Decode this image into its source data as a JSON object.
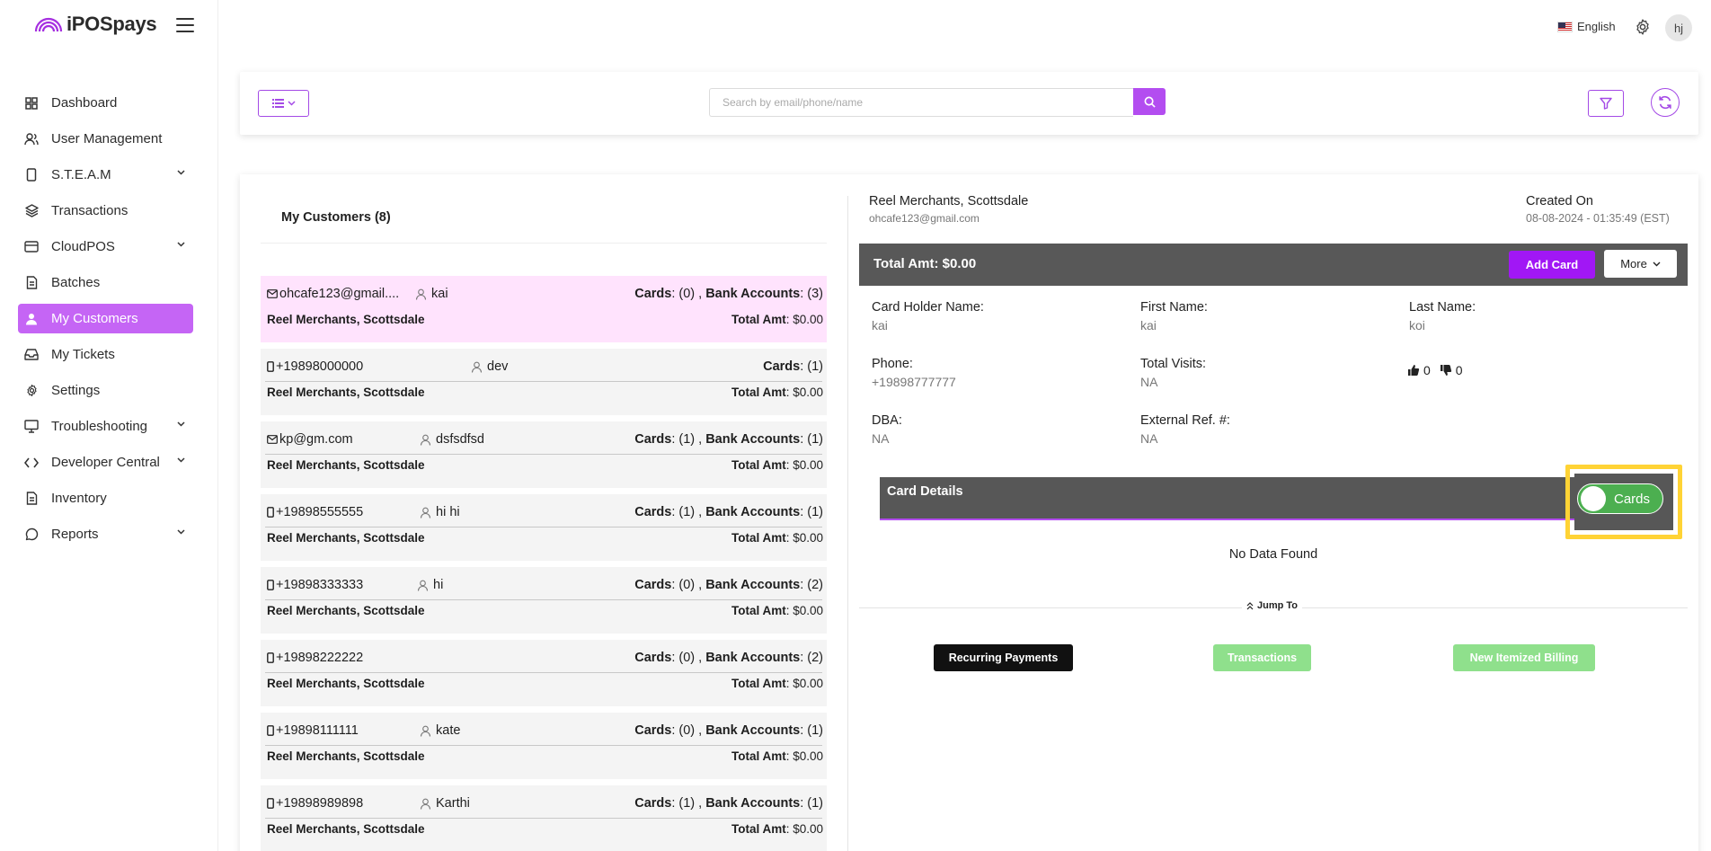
{
  "app": {
    "name": "iPOSpays"
  },
  "header": {
    "language": "English",
    "avatar_initials": "hj"
  },
  "sidebar": {
    "items": [
      {
        "label": "Dashboard",
        "icon": "grid-icon",
        "active": false,
        "chevron": false
      },
      {
        "label": "User Management",
        "icon": "users-icon",
        "active": false,
        "chevron": false
      },
      {
        "label": "S.T.E.A.M",
        "icon": "device-icon",
        "active": false,
        "chevron": true
      },
      {
        "label": "Transactions",
        "icon": "layers-icon",
        "active": false,
        "chevron": false
      },
      {
        "label": "CloudPOS",
        "icon": "card-icon",
        "active": false,
        "chevron": true
      },
      {
        "label": "Batches",
        "icon": "file-icon",
        "active": false,
        "chevron": false
      },
      {
        "label": "My Customers",
        "icon": "user-icon",
        "active": true,
        "chevron": false
      },
      {
        "label": "My Tickets",
        "icon": "inbox-icon",
        "active": false,
        "chevron": false
      },
      {
        "label": "Settings",
        "icon": "gear-icon",
        "active": false,
        "chevron": false
      },
      {
        "label": "Troubleshooting",
        "icon": "monitor-icon",
        "active": false,
        "chevron": true
      },
      {
        "label": "Developer Central",
        "icon": "code-icon",
        "active": false,
        "chevron": true
      },
      {
        "label": "Inventory",
        "icon": "file-icon",
        "active": false,
        "chevron": false
      },
      {
        "label": "Reports",
        "icon": "chat-icon",
        "active": false,
        "chevron": true
      }
    ]
  },
  "toolbar": {
    "search_placeholder": "Search by email/phone/name"
  },
  "customers": {
    "title": "My Customers (8)",
    "rows": [
      {
        "contact_type": "email",
        "contact": "ohcafe123@gmail....",
        "user": "kai",
        "user_offset": 165,
        "cards_label": "Cards",
        "cards": ": (0) , ",
        "bank_label": "Bank Accounts",
        "bank": ": (3)",
        "merchant": "Reel Merchants, Scottsdale",
        "total_label": "Total Amt",
        "total": ": $0.00",
        "selected": true
      },
      {
        "contact_type": "phone",
        "contact": "+19898000000",
        "user": "dev",
        "user_offset": 227,
        "cards_label": "Cards",
        "cards": ": (1)",
        "bank_label": "",
        "bank": "",
        "merchant": "Reel Merchants, Scottsdale",
        "total_label": "Total Amt",
        "total": ": $0.00",
        "selected": false
      },
      {
        "contact_type": "email",
        "contact": "kp@gm.com",
        "user": "dsfsdfsd",
        "user_offset": 170,
        "cards_label": "Cards",
        "cards": ": (1) , ",
        "bank_label": "Bank Accounts",
        "bank": ": (1)",
        "merchant": "Reel Merchants, Scottsdale",
        "total_label": "Total Amt",
        "total": ": $0.00",
        "selected": false
      },
      {
        "contact_type": "phone",
        "contact": "+19898555555",
        "user": "hi hi",
        "user_offset": 170,
        "cards_label": "Cards",
        "cards": ": (1) , ",
        "bank_label": "Bank Accounts",
        "bank": ": (1)",
        "merchant": "Reel Merchants, Scottsdale",
        "total_label": "Total Amt",
        "total": ": $0.00",
        "selected": false
      },
      {
        "contact_type": "phone",
        "contact": "+19898333333",
        "user": "hi",
        "user_offset": 167,
        "cards_label": "Cards",
        "cards": ": (0) , ",
        "bank_label": "Bank Accounts",
        "bank": ": (2)",
        "merchant": "Reel Merchants, Scottsdale",
        "total_label": "Total Amt",
        "total": ": $0.00",
        "selected": false
      },
      {
        "contact_type": "phone",
        "contact": "+19898222222",
        "user": "",
        "user_offset": 0,
        "cards_label": "Cards",
        "cards": ": (0) , ",
        "bank_label": "Bank Accounts",
        "bank": ": (2)",
        "merchant": "Reel Merchants, Scottsdale",
        "total_label": "Total Amt",
        "total": ": $0.00",
        "selected": false
      },
      {
        "contact_type": "phone",
        "contact": "+19898111111",
        "user": "kate",
        "user_offset": 170,
        "cards_label": "Cards",
        "cards": ": (0) , ",
        "bank_label": "Bank Accounts",
        "bank": ": (1)",
        "merchant": "Reel Merchants, Scottsdale",
        "total_label": "Total Amt",
        "total": ": $0.00",
        "selected": false
      },
      {
        "contact_type": "phone",
        "contact": "+19898989898",
        "user": "Karthi",
        "user_offset": 170,
        "cards_label": "Cards",
        "cards": ": (1) , ",
        "bank_label": "Bank Accounts",
        "bank": ": (1)",
        "merchant": "Reel Merchants, Scottsdale",
        "total_label": "Total Amt",
        "total": ": $0.00",
        "selected": false
      }
    ]
  },
  "detail": {
    "merchant": "Reel Merchants, Scottsdale",
    "email": "ohcafe123@gmail.com",
    "created_label": "Created On",
    "created_value": "08-08-2024 - 01:35:49 (EST)",
    "total": "Total Amt: $0.00",
    "add_card": "Add Card",
    "more": "More",
    "fields": {
      "card_holder_label": "Card Holder Name:",
      "card_holder": "kai",
      "first_name_label": "First Name:",
      "first_name": "kai",
      "last_name_label": "Last Name:",
      "last_name": "koi",
      "phone_label": "Phone:",
      "phone": "+19898777777",
      "visits_label": "Total Visits:",
      "visits": "NA",
      "dba_label": "DBA:",
      "dba": "NA",
      "ext_ref_label": "External Ref. #:",
      "ext_ref": "NA"
    },
    "thumbs_up": "0",
    "thumbs_down": "0",
    "card_details": "Card Details",
    "toggle_label": "Cards",
    "no_data": "No Data Found",
    "jump_to": "Jump To",
    "buttons": {
      "recurring": "Recurring Payments",
      "transactions": "Transactions",
      "billing": "New Itemized Billing"
    }
  },
  "colors": {
    "accent": "#b34df0",
    "active_nav": "#c565f5",
    "selected_row": "#ffe3fd",
    "highlight": "#ffd335",
    "toggle_on": "#4caf50",
    "green_btn": "#8fe08c"
  }
}
